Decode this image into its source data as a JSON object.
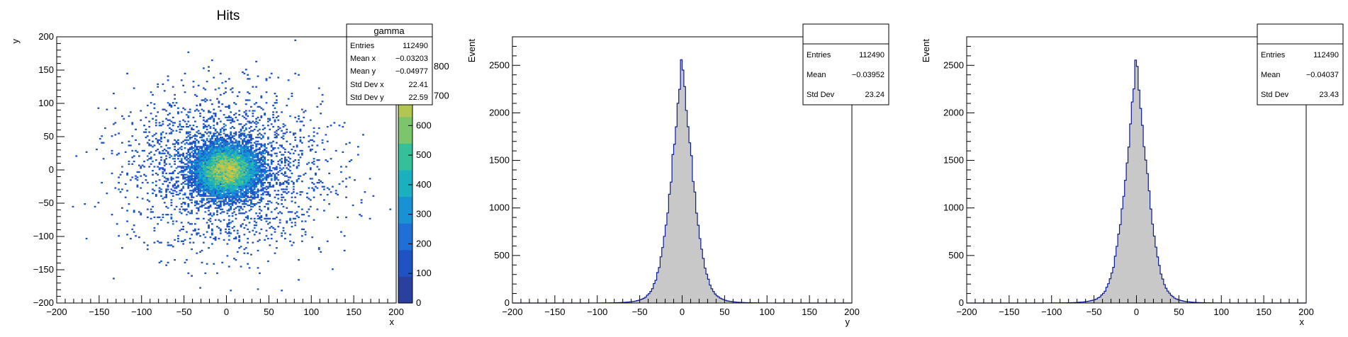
{
  "colors": {
    "line": "#0a1a9a",
    "fill": "#c8c8c8",
    "frame": "#000000"
  },
  "chart_data": [
    {
      "type": "heatmap",
      "title": "Hits",
      "xlabel": "x",
      "ylabel": "y",
      "xlim": [
        -200,
        200
      ],
      "ylim": [
        -200,
        200
      ],
      "x_ticks": [
        -200,
        -150,
        -100,
        -50,
        0,
        50,
        100,
        150,
        200
      ],
      "y_ticks": [
        -200,
        -150,
        -100,
        -50,
        0,
        50,
        100,
        150,
        200
      ],
      "z_range": [
        0,
        900
      ],
      "z_ticks": [
        0,
        100,
        200,
        300,
        400,
        500,
        600,
        700,
        800,
        900
      ],
      "z_ticks_visible": [
        0,
        100,
        200,
        300,
        400,
        500,
        600
      ],
      "distribution": {
        "center": [
          0,
          0
        ],
        "std_x": 22.41,
        "std_y": 22.59,
        "entries": 112490
      },
      "stats_box": {
        "title": "gamma",
        "rows": [
          {
            "label": "Entries",
            "value": "112490"
          },
          {
            "label": "Mean x",
            "value": "−0.03203"
          },
          {
            "label": "Mean y",
            "value": "−0.04977"
          },
          {
            "label": "Std Dev x",
            "value": "22.41"
          },
          {
            "label": "Std Dev y",
            "value": "22.59"
          }
        ]
      },
      "palette": [
        "#2a3f9e",
        "#1f52c2",
        "#1e6fd6",
        "#1892d4",
        "#1ab0c0",
        "#36c09a",
        "#7cc56c",
        "#b4c652",
        "#e0c33e",
        "#f7d21d"
      ]
    },
    {
      "type": "bar",
      "title": "",
      "xlabel": "y",
      "ylabel": "Event",
      "xlim": [
        -200,
        200
      ],
      "ylim": [
        0,
        2800
      ],
      "x_ticks": [
        -200,
        -150,
        -100,
        -50,
        0,
        50,
        100,
        150,
        200
      ],
      "y_ticks": [
        0,
        500,
        1000,
        1500,
        2000,
        2500
      ],
      "distribution": {
        "shape": "peaked",
        "mean": -0.03952,
        "std": 23.24,
        "peak": 2640,
        "bin_width": 2
      },
      "stats_box": {
        "title": "",
        "rows": [
          {
            "label": "Entries",
            "value": "112490"
          },
          {
            "label": "Mean",
            "value": "−0.03952"
          },
          {
            "label": "Std Dev",
            "value": "23.24"
          }
        ]
      }
    },
    {
      "type": "bar",
      "title": "",
      "xlabel": "x",
      "ylabel": "Event",
      "xlim": [
        -200,
        200
      ],
      "ylim": [
        0,
        2800
      ],
      "x_ticks": [
        -200,
        -150,
        -100,
        -50,
        0,
        50,
        100,
        150,
        200
      ],
      "y_ticks": [
        0,
        500,
        1000,
        1500,
        2000,
        2500
      ],
      "distribution": {
        "shape": "peaked",
        "mean": -0.04037,
        "std": 23.43,
        "peak": 2620,
        "bin_width": 2
      },
      "stats_box": {
        "title": "",
        "rows": [
          {
            "label": "Entries",
            "value": "112490"
          },
          {
            "label": "Mean",
            "value": "−0.04037"
          },
          {
            "label": "Std Dev",
            "value": "23.43"
          }
        ]
      }
    }
  ]
}
